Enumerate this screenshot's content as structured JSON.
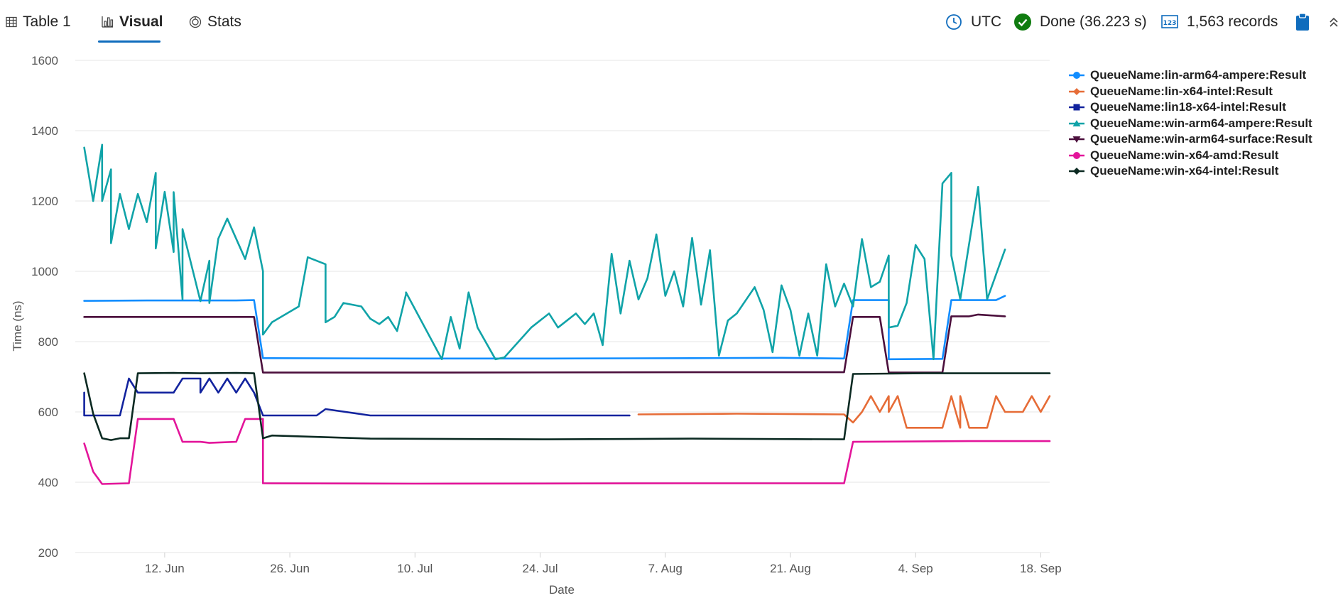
{
  "toolbar": {
    "tabs": [
      {
        "label": "Table 1",
        "icon": "table-icon",
        "active": false
      },
      {
        "label": "Visual",
        "icon": "bar-chart-icon",
        "active": true
      },
      {
        "label": "Stats",
        "icon": "stats-icon",
        "active": false
      }
    ],
    "timezone": "UTC",
    "status": "Done (36.223 s)",
    "records": "1,563 records",
    "accent_color": "#0f6cbd",
    "success_color": "#107c10"
  },
  "chart_data": {
    "type": "line",
    "xlabel": "Date",
    "ylabel": "Time (ns)",
    "ylim": [
      200,
      1600
    ],
    "yticks": [
      200,
      400,
      600,
      800,
      1000,
      1200,
      1400,
      1600
    ],
    "x_start": "2024-06-02",
    "x_end": "2024-09-19",
    "x_ticks": [
      {
        "date": "2024-06-12",
        "label": "12. Jun"
      },
      {
        "date": "2024-06-26",
        "label": "26. Jun"
      },
      {
        "date": "2024-07-10",
        "label": "10. Jul"
      },
      {
        "date": "2024-07-24",
        "label": "24. Jul"
      },
      {
        "date": "2024-08-07",
        "label": "7. Aug"
      },
      {
        "date": "2024-08-21",
        "label": "21. Aug"
      },
      {
        "date": "2024-09-04",
        "label": "4. Sep"
      },
      {
        "date": "2024-09-18",
        "label": "18. Sep"
      }
    ],
    "grid": true,
    "legend_position": "right",
    "series": [
      {
        "name": "QueueName:lin-arm64-ampere:Result",
        "color": "#118dff",
        "marker": "circle",
        "points": [
          [
            "2024-06-03",
            916
          ],
          [
            "2024-06-10",
            917
          ],
          [
            "2024-06-20",
            917
          ],
          [
            "2024-06-22",
            918
          ],
          [
            "2024-06-23",
            753
          ],
          [
            "2024-07-10",
            752
          ],
          [
            "2024-07-25",
            752
          ],
          [
            "2024-08-10",
            753
          ],
          [
            "2024-08-20",
            754
          ],
          [
            "2024-08-27",
            752
          ],
          [
            "2024-08-28",
            918
          ],
          [
            "2024-09-01",
            918
          ],
          [
            "2024-09-01",
            750
          ],
          [
            "2024-09-07",
            751
          ],
          [
            "2024-09-08",
            918
          ],
          [
            "2024-09-13",
            918
          ],
          [
            "2024-09-14",
            930
          ]
        ]
      },
      {
        "name": "QueueName:lin-x64-intel:Result",
        "color": "#e66c37",
        "marker": "diamond",
        "points": [
          [
            "2024-08-04",
            593
          ],
          [
            "2024-08-15",
            595
          ],
          [
            "2024-08-27",
            593
          ],
          [
            "2024-08-28",
            570
          ],
          [
            "2024-08-29",
            600
          ],
          [
            "2024-08-30",
            645
          ],
          [
            "2024-08-31",
            600
          ],
          [
            "2024-09-01",
            645
          ],
          [
            "2024-09-01",
            600
          ],
          [
            "2024-09-02",
            645
          ],
          [
            "2024-09-03",
            555
          ],
          [
            "2024-09-07",
            555
          ],
          [
            "2024-09-08",
            645
          ],
          [
            "2024-09-09",
            555
          ],
          [
            "2024-09-09",
            645
          ],
          [
            "2024-09-10",
            555
          ],
          [
            "2024-09-12",
            555
          ],
          [
            "2024-09-13",
            645
          ],
          [
            "2024-09-14",
            600
          ],
          [
            "2024-09-16",
            600
          ],
          [
            "2024-09-17",
            645
          ],
          [
            "2024-09-18",
            600
          ],
          [
            "2024-09-19",
            645
          ]
        ]
      },
      {
        "name": "QueueName:lin18-x64-intel:Result",
        "color": "#12239e",
        "marker": "square",
        "points": [
          [
            "2024-06-03",
            655
          ],
          [
            "2024-06-03",
            590
          ],
          [
            "2024-06-07",
            590
          ],
          [
            "2024-06-08",
            695
          ],
          [
            "2024-06-09",
            655
          ],
          [
            "2024-06-13",
            655
          ],
          [
            "2024-06-14",
            695
          ],
          [
            "2024-06-16",
            695
          ],
          [
            "2024-06-16",
            655
          ],
          [
            "2024-06-17",
            695
          ],
          [
            "2024-06-18",
            655
          ],
          [
            "2024-06-19",
            695
          ],
          [
            "2024-06-20",
            655
          ],
          [
            "2024-06-21",
            695
          ],
          [
            "2024-06-22",
            655
          ],
          [
            "2024-06-23",
            590
          ],
          [
            "2024-06-29",
            590
          ],
          [
            "2024-06-30",
            608
          ],
          [
            "2024-07-05",
            590
          ],
          [
            "2024-07-25",
            590
          ],
          [
            "2024-08-03",
            590
          ]
        ]
      },
      {
        "name": "QueueName:win-arm64-ampere:Result",
        "color": "#10a3a8",
        "marker": "triangle",
        "points": [
          [
            "2024-06-03",
            1352
          ],
          [
            "2024-06-04",
            1200
          ],
          [
            "2024-06-05",
            1360
          ],
          [
            "2024-06-05",
            1200
          ],
          [
            "2024-06-06",
            1290
          ],
          [
            "2024-06-06",
            1080
          ],
          [
            "2024-06-07",
            1220
          ],
          [
            "2024-06-08",
            1120
          ],
          [
            "2024-06-09",
            1220
          ],
          [
            "2024-06-10",
            1140
          ],
          [
            "2024-06-11",
            1280
          ],
          [
            "2024-06-11",
            1065
          ],
          [
            "2024-06-12",
            1226
          ],
          [
            "2024-06-13",
            1055
          ],
          [
            "2024-06-13",
            1225
          ],
          [
            "2024-06-14",
            920
          ],
          [
            "2024-06-14",
            1120
          ],
          [
            "2024-06-16",
            915
          ],
          [
            "2024-06-17",
            1030
          ],
          [
            "2024-06-17",
            910
          ],
          [
            "2024-06-18",
            1093
          ],
          [
            "2024-06-19",
            1150
          ],
          [
            "2024-06-21",
            1035
          ],
          [
            "2024-06-22",
            1125
          ],
          [
            "2024-06-23",
            1000
          ],
          [
            "2024-06-23",
            820
          ],
          [
            "2024-06-24",
            855
          ],
          [
            "2024-06-27",
            900
          ],
          [
            "2024-06-28",
            1040
          ],
          [
            "2024-06-30",
            1020
          ],
          [
            "2024-06-30",
            855
          ],
          [
            "2024-07-01",
            870
          ],
          [
            "2024-07-02",
            910
          ],
          [
            "2024-07-04",
            900
          ],
          [
            "2024-07-05",
            865
          ],
          [
            "2024-07-06",
            850
          ],
          [
            "2024-07-07",
            870
          ],
          [
            "2024-07-08",
            830
          ],
          [
            "2024-07-09",
            935
          ],
          [
            "2024-07-09",
            940
          ],
          [
            "2024-07-13",
            750
          ],
          [
            "2024-07-14",
            870
          ],
          [
            "2024-07-15",
            780
          ],
          [
            "2024-07-16",
            940
          ],
          [
            "2024-07-17",
            840
          ],
          [
            "2024-07-19",
            750
          ],
          [
            "2024-07-20",
            755
          ],
          [
            "2024-07-23",
            840
          ],
          [
            "2024-07-25",
            880
          ],
          [
            "2024-07-26",
            840
          ],
          [
            "2024-07-27",
            860
          ],
          [
            "2024-07-28",
            880
          ],
          [
            "2024-07-29",
            850
          ],
          [
            "2024-07-30",
            880
          ],
          [
            "2024-07-31",
            790
          ],
          [
            "2024-08-01",
            1050
          ],
          [
            "2024-08-02",
            880
          ],
          [
            "2024-08-03",
            1030
          ],
          [
            "2024-08-04",
            920
          ],
          [
            "2024-08-05",
            980
          ],
          [
            "2024-08-06",
            1105
          ],
          [
            "2024-08-07",
            930
          ],
          [
            "2024-08-08",
            1000
          ],
          [
            "2024-08-09",
            900
          ],
          [
            "2024-08-10",
            1095
          ],
          [
            "2024-08-11",
            905
          ],
          [
            "2024-08-12",
            1060
          ],
          [
            "2024-08-13",
            760
          ],
          [
            "2024-08-14",
            860
          ],
          [
            "2024-08-15",
            880
          ],
          [
            "2024-08-17",
            955
          ],
          [
            "2024-08-18",
            890
          ],
          [
            "2024-08-19",
            770
          ],
          [
            "2024-08-20",
            960
          ],
          [
            "2024-08-21",
            890
          ],
          [
            "2024-08-22",
            760
          ],
          [
            "2024-08-23",
            880
          ],
          [
            "2024-08-24",
            760
          ],
          [
            "2024-08-25",
            1020
          ],
          [
            "2024-08-26",
            900
          ],
          [
            "2024-08-27",
            965
          ],
          [
            "2024-08-28",
            900
          ],
          [
            "2024-08-29",
            1092
          ],
          [
            "2024-08-30",
            955
          ],
          [
            "2024-08-31",
            970
          ],
          [
            "2024-09-01",
            1045
          ],
          [
            "2024-09-01",
            840
          ],
          [
            "2024-09-02",
            845
          ],
          [
            "2024-09-03",
            910
          ],
          [
            "2024-09-04",
            1075
          ],
          [
            "2024-09-05",
            1035
          ],
          [
            "2024-09-06",
            750
          ],
          [
            "2024-09-07",
            1250
          ],
          [
            "2024-09-08",
            1280
          ],
          [
            "2024-09-08",
            1045
          ],
          [
            "2024-09-09",
            920
          ],
          [
            "2024-09-11",
            1240
          ],
          [
            "2024-09-12",
            920
          ],
          [
            "2024-09-14",
            1062
          ]
        ]
      },
      {
        "name": "QueueName:win-arm64-surface:Result",
        "color": "#4b0f3c",
        "marker": "triangle-down",
        "points": [
          [
            "2024-06-03",
            870
          ],
          [
            "2024-06-10",
            870
          ],
          [
            "2024-06-22",
            870
          ],
          [
            "2024-06-23",
            712
          ],
          [
            "2024-07-10",
            712
          ],
          [
            "2024-08-10",
            713
          ],
          [
            "2024-08-27",
            713
          ],
          [
            "2024-08-28",
            870
          ],
          [
            "2024-08-31",
            870
          ],
          [
            "2024-09-01",
            712
          ],
          [
            "2024-09-07",
            712
          ],
          [
            "2024-09-08",
            872
          ],
          [
            "2024-09-10",
            872
          ],
          [
            "2024-09-11",
            877
          ],
          [
            "2024-09-14",
            872
          ]
        ]
      },
      {
        "name": "QueueName:win-x64-amd:Result",
        "color": "#e3159a",
        "marker": "circle",
        "points": [
          [
            "2024-06-03",
            510
          ],
          [
            "2024-06-04",
            430
          ],
          [
            "2024-06-05",
            395
          ],
          [
            "2024-06-08",
            397
          ],
          [
            "2024-06-09",
            580
          ],
          [
            "2024-06-13",
            580
          ],
          [
            "2024-06-14",
            515
          ],
          [
            "2024-06-16",
            515
          ],
          [
            "2024-06-17",
            512
          ],
          [
            "2024-06-20",
            515
          ],
          [
            "2024-06-21",
            580
          ],
          [
            "2024-06-22",
            580
          ],
          [
            "2024-06-23",
            580
          ],
          [
            "2024-06-23",
            397
          ],
          [
            "2024-07-10",
            396
          ],
          [
            "2024-08-10",
            397
          ],
          [
            "2024-08-27",
            397
          ],
          [
            "2024-08-28",
            515
          ],
          [
            "2024-09-10",
            517
          ],
          [
            "2024-09-19",
            517
          ]
        ]
      },
      {
        "name": "QueueName:win-x64-intel:Result",
        "color": "#0b2a22",
        "marker": "diamond",
        "points": [
          [
            "2024-06-03",
            710
          ],
          [
            "2024-06-04",
            595
          ],
          [
            "2024-06-05",
            525
          ],
          [
            "2024-06-06",
            520
          ],
          [
            "2024-06-07",
            525
          ],
          [
            "2024-06-08",
            525
          ],
          [
            "2024-06-09",
            710
          ],
          [
            "2024-06-13",
            711
          ],
          [
            "2024-06-16",
            710
          ],
          [
            "2024-06-20",
            711
          ],
          [
            "2024-06-22",
            710
          ],
          [
            "2024-06-23",
            525
          ],
          [
            "2024-06-24",
            533
          ],
          [
            "2024-06-30",
            528
          ],
          [
            "2024-07-05",
            524
          ],
          [
            "2024-07-25",
            522
          ],
          [
            "2024-08-10",
            524
          ],
          [
            "2024-08-27",
            522
          ],
          [
            "2024-08-28",
            708
          ],
          [
            "2024-09-05",
            710
          ],
          [
            "2024-09-14",
            710
          ],
          [
            "2024-09-19",
            710
          ]
        ]
      }
    ]
  }
}
